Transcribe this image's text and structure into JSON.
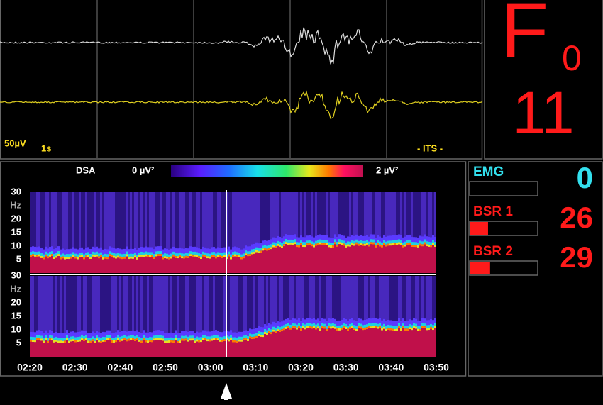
{
  "eeg": {
    "scale": "50µV",
    "time": "1s",
    "mode": "- ITS -"
  },
  "state": {
    "letter": "F",
    "subscript": "0",
    "value": "11"
  },
  "dsa": {
    "title": "DSA",
    "min_label": "0 µV²",
    "max_label": "2 µV²",
    "unit": "Hz",
    "yticks": [
      30,
      20,
      15,
      10,
      5
    ],
    "xticks": [
      "02:20",
      "02:30",
      "02:40",
      "02:50",
      "03:00",
      "03:10",
      "03:20",
      "03:30",
      "03:40",
      "03:50"
    ]
  },
  "indices": [
    {
      "label": "EMG",
      "value": 0,
      "color": "#33e0ee"
    },
    {
      "label": "BSR 1",
      "value": 26,
      "color": "#ff1a1a"
    },
    {
      "label": "BSR 2",
      "value": 29,
      "color": "#ff1a1a"
    }
  ]
}
